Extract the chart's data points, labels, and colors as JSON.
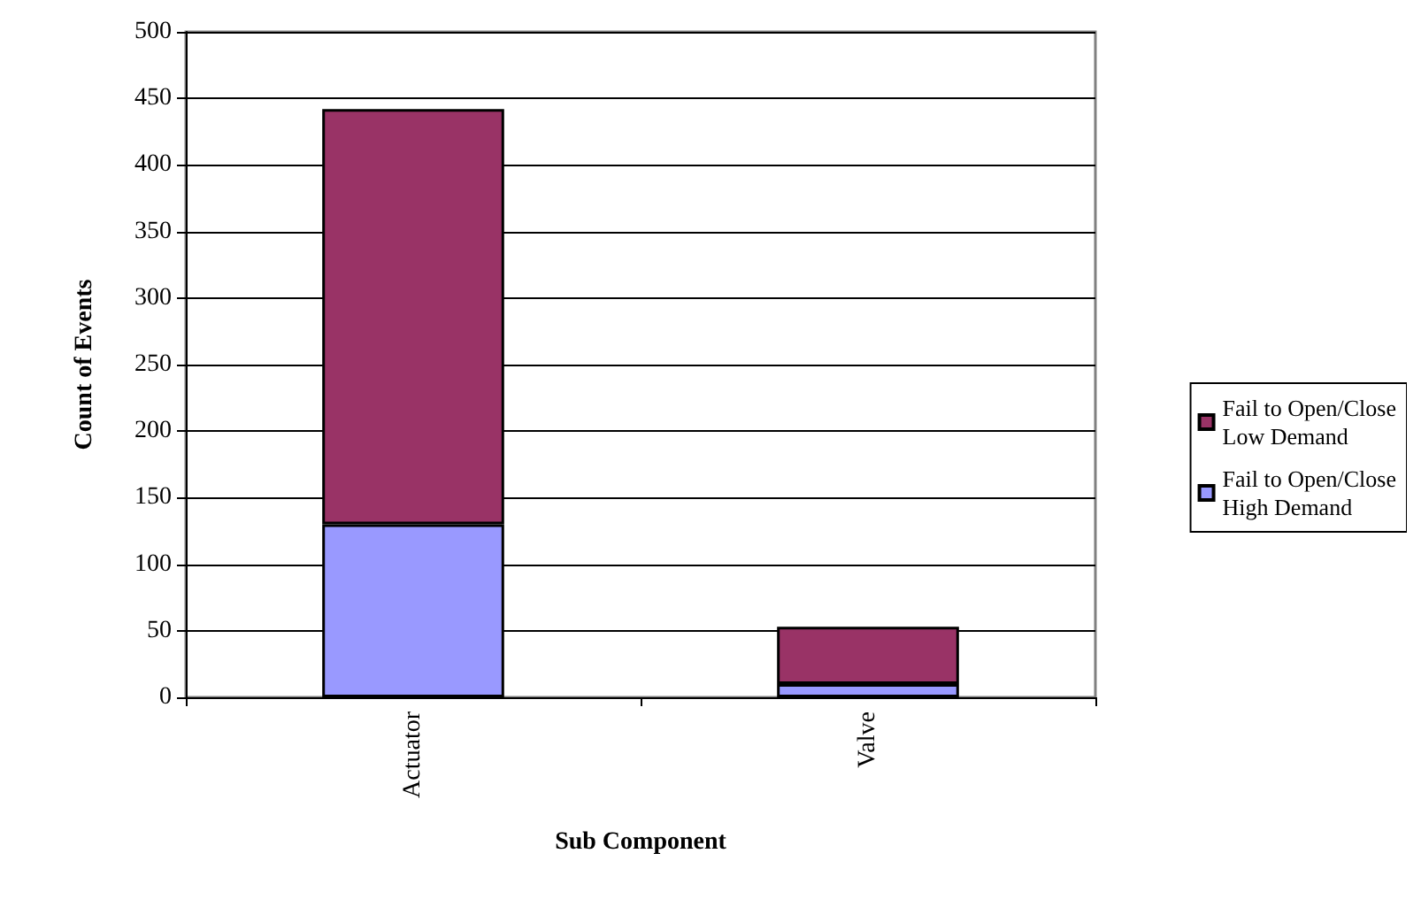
{
  "chart_data": {
    "type": "bar",
    "stacked": true,
    "xlabel": "Sub Component",
    "ylabel": "Count of Events",
    "categories": [
      "Actuator",
      "Valve"
    ],
    "series": [
      {
        "name": "Fail to Open/Close High Demand",
        "color": "#9999ff",
        "values": [
          130,
          10
        ]
      },
      {
        "name": "Fail to Open/Close Low Demand",
        "color": "#993366",
        "values": [
          312,
          43
        ]
      }
    ],
    "ylim": [
      0,
      500
    ],
    "yticks": [
      0,
      50,
      100,
      150,
      200,
      250,
      300,
      350,
      400,
      450,
      500
    ],
    "grid": "y",
    "legend": "right"
  }
}
